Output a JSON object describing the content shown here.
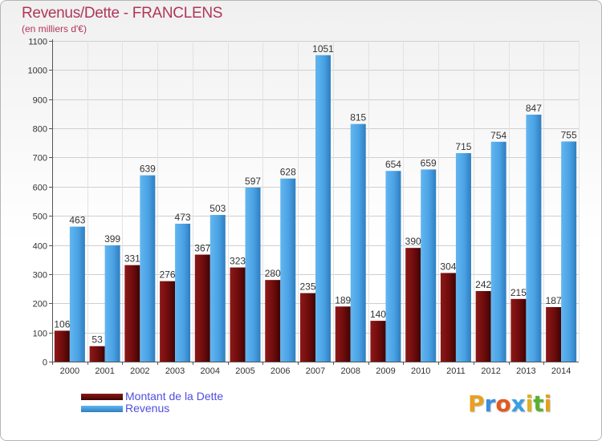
{
  "header": {
    "title": "Revenus/Dette - FRANCLENS",
    "subtitle": "(en milliers d'€)"
  },
  "legend": [
    {
      "name": "Montant de la Dette",
      "color": "#7a1010"
    },
    {
      "name": "Revenus",
      "color": "#4ea6e8"
    }
  ],
  "brand": {
    "letters": [
      "P",
      "r",
      "o",
      "x",
      "i",
      "t",
      "i"
    ],
    "colors": [
      "#e8a020",
      "#3a8ee0",
      "#e05a20",
      "#3aa0e0",
      "#e0b020",
      "#58b030",
      "#e0a020"
    ]
  },
  "chart_data": {
    "type": "bar",
    "title": "Revenus/Dette - FRANCLENS",
    "subtitle": "(en milliers d'€)",
    "categories": [
      "2000",
      "2001",
      "2002",
      "2003",
      "2004",
      "2005",
      "2006",
      "2007",
      "2008",
      "2009",
      "2010",
      "2011",
      "2012",
      "2013",
      "2014"
    ],
    "series": [
      {
        "name": "Montant de la Dette",
        "color": "#7a1010",
        "values": [
          106,
          53,
          331,
          276,
          367,
          323,
          280,
          235,
          189,
          140,
          390,
          304,
          242,
          215,
          187
        ]
      },
      {
        "name": "Revenus",
        "color": "#4ea6e8",
        "values": [
          463,
          399,
          639,
          473,
          503,
          597,
          628,
          1051,
          815,
          654,
          659,
          715,
          754,
          847,
          755
        ]
      }
    ],
    "ylim": [
      0,
      1100
    ],
    "yticks": [
      0,
      100,
      200,
      300,
      400,
      500,
      600,
      700,
      800,
      900,
      1000,
      1100
    ],
    "grid": true,
    "legend_position": "bottom-left"
  }
}
